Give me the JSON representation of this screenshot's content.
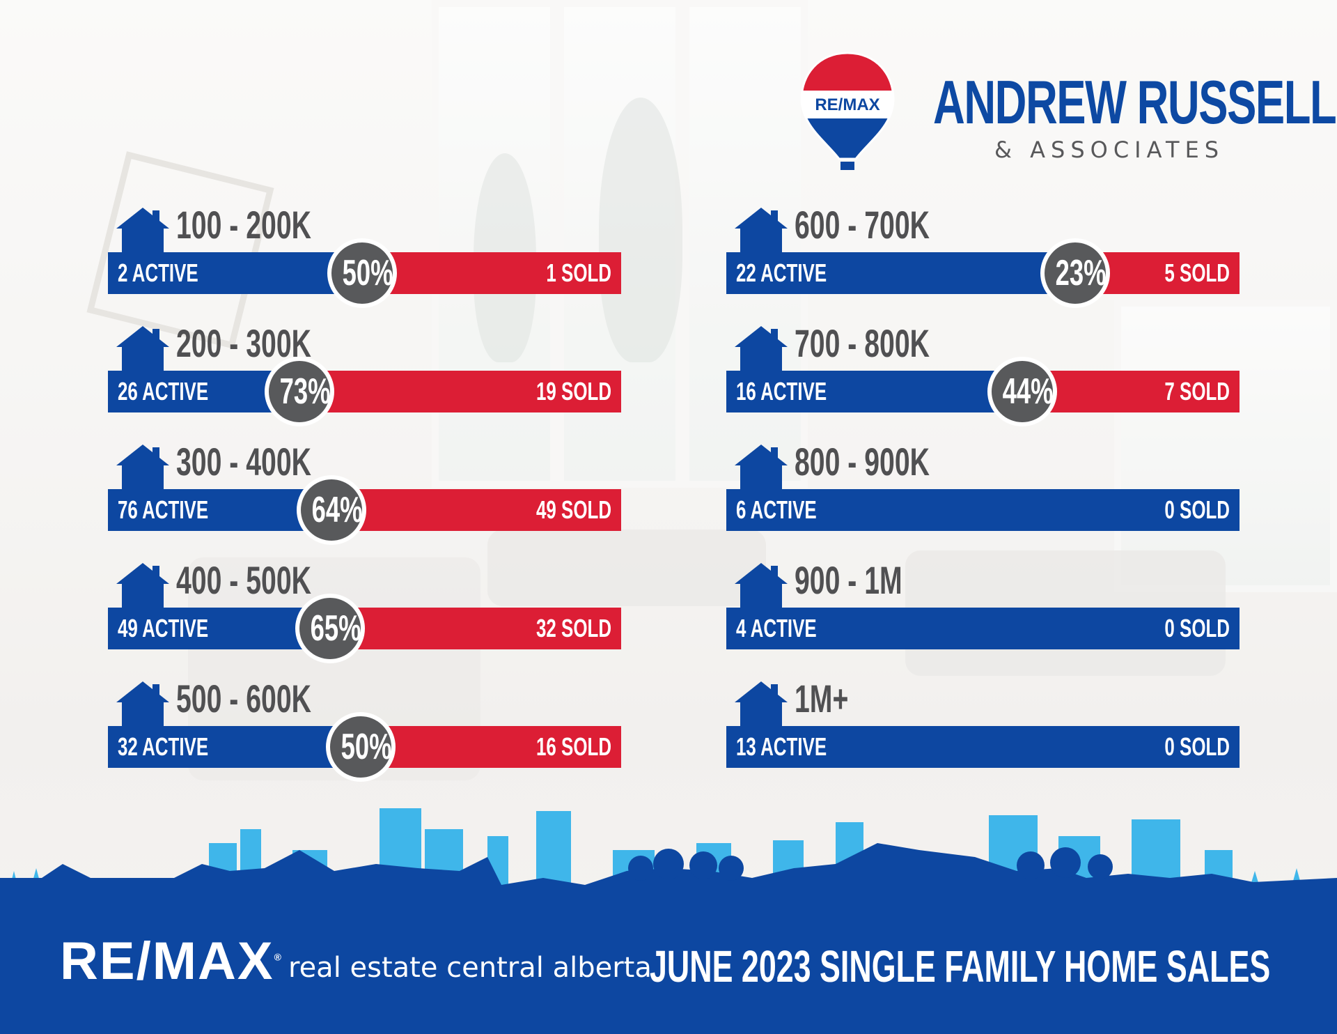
{
  "brand": {
    "balloon_text": "RE/MAX",
    "name": "ANDREW RUSSELL",
    "sub": "& ASSOCIATES"
  },
  "rows": [
    {
      "range": "100 - 200K",
      "active": "2 ACTIVE",
      "pct": "50%",
      "sold": "1 SOLD"
    },
    {
      "range": "200 - 300K",
      "active": "26 ACTIVE",
      "pct": "73%",
      "sold": "19 SOLD"
    },
    {
      "range": "300 - 400K",
      "active": "76 ACTIVE",
      "pct": "64%",
      "sold": "49 SOLD"
    },
    {
      "range": "400 - 500K",
      "active": "49 ACTIVE",
      "pct": "65%",
      "sold": "32 SOLD"
    },
    {
      "range": "500 - 600K",
      "active": "32 ACTIVE",
      "pct": "50%",
      "sold": "16 SOLD"
    },
    {
      "range": "600 - 700K",
      "active": "22 ACTIVE",
      "pct": "23%",
      "sold": "5 SOLD"
    },
    {
      "range": "700 - 800K",
      "active": "16 ACTIVE",
      "pct": "44%",
      "sold": "7 SOLD"
    },
    {
      "range": "800 - 900K",
      "active": "6 ACTIVE",
      "pct": null,
      "sold": "0 SOLD"
    },
    {
      "range": "900 - 1M",
      "active": "4 ACTIVE",
      "pct": null,
      "sold": "0 SOLD"
    },
    {
      "range": "1M+",
      "active": "13 ACTIVE",
      "pct": null,
      "sold": "0 SOLD"
    }
  ],
  "footer": {
    "logo": "RE/MAX",
    "tagline": "real estate central alberta",
    "title": "JUNE 2023 SINGLE FAMILY HOME SALES"
  },
  "colors": {
    "blue": "#0d47a1",
    "red": "#dc1e35",
    "grey": "#58595b",
    "sky_light": "#3fb6ea",
    "sky_dark": "#0d47a1"
  },
  "icons": [
    "house-icon",
    "remax-balloon-icon",
    "city-skyline"
  ]
}
